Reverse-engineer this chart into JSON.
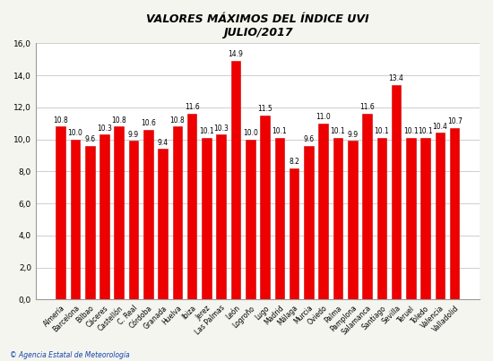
{
  "title_line1": "VALORES MÁXIMOS DEL ÍNDICE UVI",
  "title_line2": "JULIO/2017",
  "bar_color": "#ee0000",
  "bar_edge_color": "#cc0000",
  "background_color": "#f5f5f0",
  "plot_bg_color": "#ffffff",
  "grid_color": "#bbbbbb",
  "ylim": [
    0,
    16
  ],
  "ytick_labels": [
    "0,0",
    "2,0",
    "4,0",
    "6,0",
    "8,0",
    "10,0",
    "12,0",
    "14,0",
    "16,0"
  ],
  "ytick_values": [
    0,
    2,
    4,
    6,
    8,
    10,
    12,
    14,
    16
  ],
  "labels_and_values": [
    {
      "label": "Almería",
      "value": 10.8
    },
    {
      "label": "Barcelona",
      "value": 10.0
    },
    {
      "label": "Bilbao",
      "value": 9.6
    },
    {
      "label": "Cáceres",
      "value": 10.3
    },
    {
      "label": "Castellón",
      "value": 10.8
    },
    {
      "label": "C. Real",
      "value": 9.9
    },
    {
      "label": "Córdoba",
      "value": 10.6
    },
    {
      "label": "Granada",
      "value": 9.4
    },
    {
      "label": "Huelva",
      "value": 10.8
    },
    {
      "label": "Ibiza",
      "value": 11.6
    },
    {
      "label": "Jerez",
      "value": 10.1
    },
    {
      "label": "Las Palmas",
      "value": 10.3
    },
    {
      "label": "León",
      "value": 14.9
    },
    {
      "label": "Logroño",
      "value": 10.0
    },
    {
      "label": "Lugo",
      "value": 11.5
    },
    {
      "label": "Madrid",
      "value": 10.1
    },
    {
      "label": "Málaga",
      "value": 8.2
    },
    {
      "label": "Murcia",
      "value": 9.6
    },
    {
      "label": "Oviedo",
      "value": 11.0
    },
    {
      "label": "Palma",
      "value": 10.1
    },
    {
      "label": "Pamplona",
      "value": 9.9
    },
    {
      "label": "Salamanca",
      "value": 11.6
    },
    {
      "label": "Santiago",
      "value": 10.1
    },
    {
      "label": "Sevilla",
      "value": 13.4
    },
    {
      "label": "Teruel",
      "value": 10.1
    },
    {
      "label": "Toledo",
      "value": 10.1
    },
    {
      "label": "Valencia",
      "value": 10.4
    },
    {
      "label": "Valladolid",
      "value": 10.7
    }
  ],
  "footer_left": "© Agencia Estatal de Meteorología",
  "footer_color": "#1144aa",
  "title_fontsize": 9,
  "label_fontsize": 5.5,
  "value_fontsize": 5.5,
  "ytick_fontsize": 6.5
}
